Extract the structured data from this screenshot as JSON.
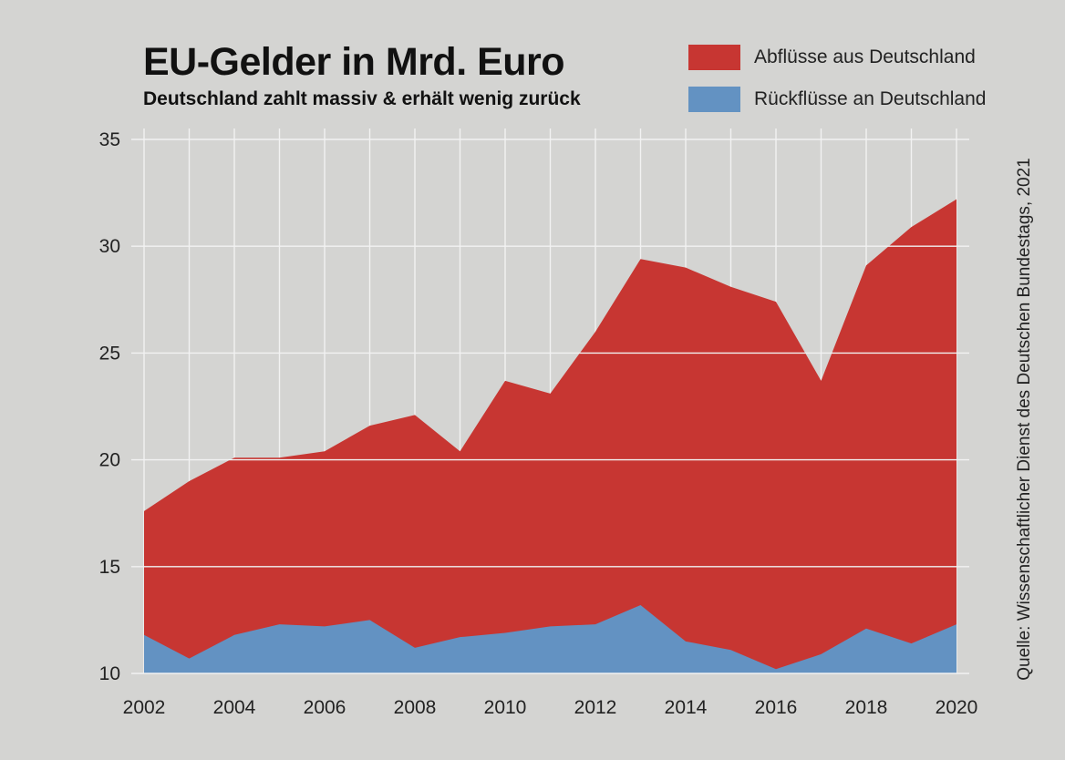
{
  "title": "EU-Gelder in Mrd. Euro",
  "subtitle": "Deutschland zahlt massiv & erhält wenig zurück",
  "source": "Quelle: Wissenschaftlicher Dienst des Deutschen Bundestags, 2021",
  "colors": {
    "outflow": "#c73632",
    "inflow": "#6392c2",
    "background": "#d4d4d2",
    "grid": "#f2f2f2"
  },
  "chart_data": {
    "type": "area",
    "title": "EU-Gelder in Mrd. Euro",
    "subtitle": "Deutschland zahlt massiv & erhält wenig zurück",
    "x": [
      2002,
      2003,
      2004,
      2005,
      2006,
      2007,
      2008,
      2009,
      2010,
      2011,
      2012,
      2013,
      2014,
      2015,
      2016,
      2017,
      2018,
      2019,
      2020
    ],
    "series": [
      {
        "name": "Abflüsse aus Deutschland",
        "values": [
          17.6,
          19.0,
          20.1,
          20.1,
          20.4,
          21.6,
          22.1,
          20.4,
          23.7,
          23.1,
          26.0,
          29.4,
          29.0,
          28.1,
          27.4,
          23.7,
          29.1,
          30.9,
          32.2
        ]
      },
      {
        "name": "Rückflüsse an Deutschland",
        "values": [
          11.8,
          10.7,
          11.8,
          12.3,
          12.2,
          12.5,
          11.2,
          11.7,
          11.9,
          12.2,
          12.3,
          13.2,
          11.5,
          11.1,
          10.2,
          10.9,
          12.1,
          11.4,
          12.3
        ]
      }
    ],
    "ylim": [
      10,
      35
    ],
    "yticks": [
      10,
      15,
      20,
      25,
      30,
      35
    ],
    "xticks": [
      2002,
      2004,
      2006,
      2008,
      2010,
      2012,
      2014,
      2016,
      2018,
      2020
    ],
    "grid": true,
    "legend_position": "top-right"
  }
}
